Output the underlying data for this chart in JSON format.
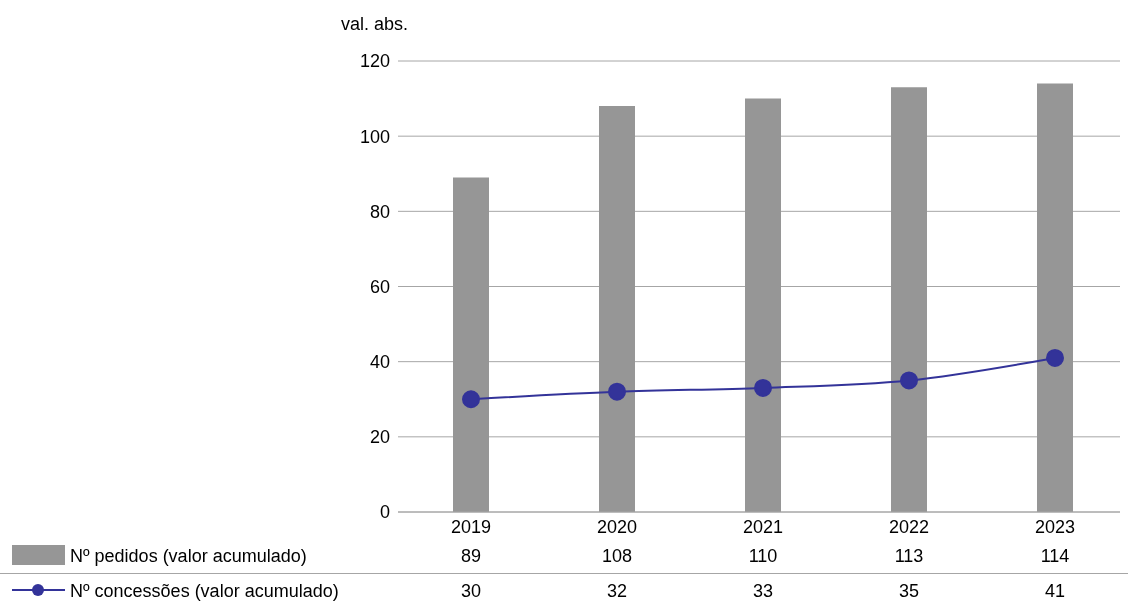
{
  "chart_data": {
    "type": "bar",
    "ylabel": "val. abs.",
    "categories": [
      "2019",
      "2020",
      "2021",
      "2022",
      "2023"
    ],
    "series": [
      {
        "name": "Nº pedidos (valor acumulado)",
        "color": "#969696",
        "values": [
          89,
          108,
          110,
          113,
          114
        ]
      },
      {
        "name": "Nº concessões (valor acumulado)",
        "type": "line",
        "color": "#333399",
        "values": [
          30,
          32,
          33,
          35,
          41
        ]
      }
    ],
    "ylim": [
      0,
      120
    ],
    "yticks": [
      0,
      20,
      40,
      60,
      80,
      100,
      120
    ],
    "grid": "y",
    "legend": "bottom",
    "data_labels": true,
    "marker": "circle"
  }
}
